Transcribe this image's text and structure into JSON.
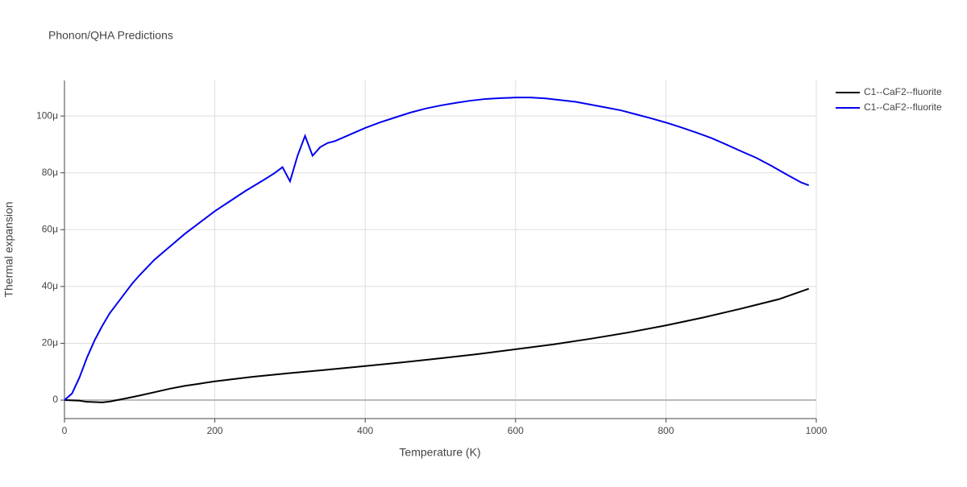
{
  "chart_data": {
    "type": "line",
    "title": "Phonon/QHA Predictions",
    "x_label": "Temperature (K)",
    "y_label": "Thermal expansion",
    "xlim": [
      0,
      1000
    ],
    "xticks": [
      0,
      200,
      400,
      600,
      800,
      1000
    ],
    "ylim": [
      -6.5,
      112.5
    ],
    "yticks": [
      0,
      {
        "value": 20,
        "label": "20μ"
      },
      {
        "value": 40,
        "label": "40μ"
      },
      {
        "value": 60,
        "label": "60μ"
      },
      {
        "value": 80,
        "label": "80μ"
      },
      {
        "value": 100,
        "label": "100μ"
      }
    ],
    "grid": true,
    "legend": "top-right",
    "series": [
      {
        "name": "C1--CaF2--fluorite",
        "color": "#000000",
        "x": [
          0,
          20,
          30,
          50,
          60,
          80,
          100,
          120,
          140,
          160,
          180,
          200,
          250,
          300,
          350,
          400,
          450,
          500,
          550,
          600,
          650,
          700,
          750,
          800,
          850,
          900,
          950,
          990
        ],
        "values": [
          0,
          -0.2,
          -0.6,
          -0.8,
          -0.5,
          0.5,
          1.6,
          2.8,
          4,
          5,
          5.8,
          6.6,
          8.2,
          9.5,
          10.7,
          12,
          13.3,
          14.7,
          16.2,
          17.9,
          19.6,
          21.6,
          23.8,
          26.3,
          29.1,
          32.2,
          35.5,
          39.2
        ]
      },
      {
        "name": "C1--CaF2--fluorite",
        "color": "#0000ee",
        "x": [
          0,
          10,
          20,
          30,
          40,
          50,
          60,
          70,
          80,
          90,
          100,
          120,
          140,
          160,
          180,
          200,
          220,
          240,
          260,
          270,
          280,
          290,
          300,
          310,
          320,
          330,
          340,
          350,
          360,
          380,
          400,
          420,
          440,
          460,
          480,
          500,
          520,
          540,
          560,
          580,
          600,
          620,
          640,
          660,
          680,
          700,
          720,
          740,
          760,
          780,
          800,
          820,
          840,
          860,
          880,
          900,
          920,
          940,
          960,
          980,
          990
        ],
        "values": [
          0,
          2.3,
          8,
          15,
          21,
          26,
          30.5,
          34,
          37.5,
          41,
          44,
          49.5,
          54,
          58.5,
          62.5,
          66.5,
          70,
          73.5,
          76.7,
          78.3,
          80,
          82,
          77,
          86,
          93,
          86,
          89,
          90.5,
          91.2,
          93.5,
          95.8,
          97.8,
          99.5,
          101.2,
          102.6,
          103.7,
          104.6,
          105.4,
          106,
          106.3,
          106.5,
          106.5,
          106.2,
          105.6,
          105,
          104,
          103,
          102,
          100.6,
          99.2,
          97.7,
          96,
          94.2,
          92.3,
          90,
          87.6,
          85.3,
          82.5,
          79.5,
          76.6,
          75.6
        ]
      }
    ]
  }
}
